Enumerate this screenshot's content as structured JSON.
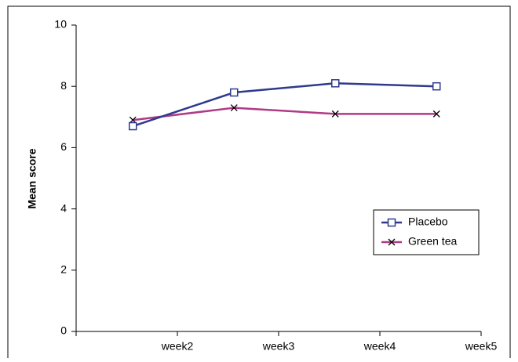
{
  "chart_data": {
    "type": "line",
    "y_label": "Mean score",
    "categories": [
      "week2",
      "week3",
      "week4",
      "week5"
    ],
    "series": [
      {
        "name": "Placebo",
        "color": "#2e3a8c",
        "marker": "square",
        "values": [
          6.7,
          7.8,
          8.1,
          8.0
        ]
      },
      {
        "name": "Green tea",
        "color": "#b03a86",
        "marker": "x",
        "values": [
          6.9,
          7.3,
          7.1,
          7.1
        ]
      }
    ],
    "ylim": [
      0,
      10
    ],
    "yticks": [
      0,
      2,
      4,
      6,
      8,
      10
    ],
    "legend": "lower-right"
  }
}
